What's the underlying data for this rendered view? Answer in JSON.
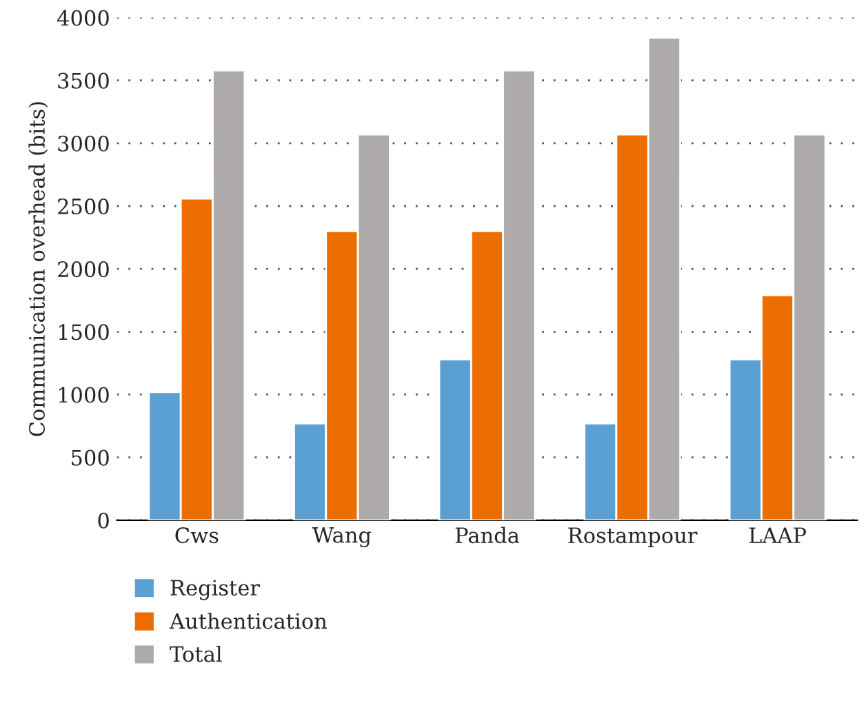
{
  "chart_data": {
    "type": "bar",
    "ylabel": "Communication overhead (bits)",
    "categories": [
      "Cws",
      "Wang",
      "Panda",
      "Rostampour",
      "LAAP"
    ],
    "series": [
      {
        "name": "Register",
        "color": "#5aa0d3",
        "values": [
          1020,
          770,
          1280,
          770,
          1280
        ]
      },
      {
        "name": "Authentication",
        "color": "#ed6d00",
        "values": [
          2560,
          2300,
          2300,
          3070,
          1790
        ]
      },
      {
        "name": "Total",
        "color": "#aeaaa9",
        "values": [
          3580,
          3070,
          3580,
          3840,
          3070
        ]
      }
    ],
    "ylim": [
      0,
      4000
    ],
    "yticks": [
      0,
      500,
      1000,
      1500,
      2000,
      2500,
      3000,
      3500,
      4000
    ],
    "grid": "y",
    "legend": "bottom left",
    "line_style": "dotted"
  }
}
